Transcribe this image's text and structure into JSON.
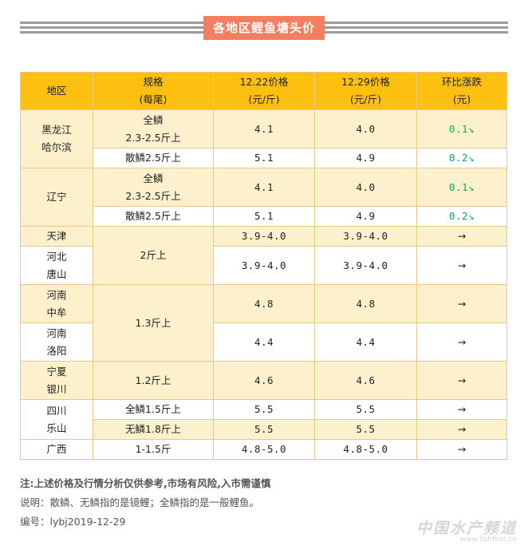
{
  "title": "各地区鲤鱼塘头价",
  "headers": {
    "region": "地区",
    "spec_line1": "规格",
    "spec_line2": "(每尾)",
    "p1222_line1": "12.22价格",
    "p1222_line2": "(元/斤)",
    "p1229_line1": "12.29价格",
    "p1229_line2": "(元/斤)",
    "change_line1": "环比涨跌",
    "change_line2": "(元)"
  },
  "rows": {
    "hlj": {
      "region1": "黑龙江",
      "region2": "哈尔滨",
      "a": {
        "spec1": "全鳞",
        "spec2": "2.3-2.5斤上",
        "p1": "4.1",
        "p2": "4.0",
        "chg": "0.1↘"
      },
      "b": {
        "spec": "散鳞2.5斤上",
        "p1": "5.1",
        "p2": "4.9",
        "chg": "0.2↘"
      }
    },
    "ln": {
      "region": "辽宁",
      "a": {
        "spec1": "全鳞",
        "spec2": "2.3-2.5斤上",
        "p1": "4.1",
        "p2": "4.0",
        "chg": "0.1↘"
      },
      "b": {
        "spec": "散鳞2.5斤上",
        "p1": "5.1",
        "p2": "4.9",
        "chg": "0.2↘"
      }
    },
    "tj": {
      "region": "天津",
      "spec": "2斤上",
      "p1": "3.9-4.0",
      "p2": "3.9-4.0",
      "chg": "→"
    },
    "hb": {
      "region1": "河北",
      "region2": "唐山",
      "p1": "3.9-4.0",
      "p2": "3.9-4.0",
      "chg": "→"
    },
    "hnzm": {
      "region1": "河南",
      "region2": "中牟",
      "spec": "1.3斤上",
      "p1": "4.8",
      "p2": "4.8",
      "chg": "→"
    },
    "hnly": {
      "region1": "河南",
      "region2": "洛阳",
      "p1": "4.4",
      "p2": "4.4",
      "chg": "→"
    },
    "nx": {
      "region1": "宁夏",
      "region2": "银川",
      "spec": "1.2斤上",
      "p1": "4.6",
      "p2": "4.6",
      "chg": "→"
    },
    "sc": {
      "region1": "四川",
      "region2": "乐山",
      "a": {
        "spec": "全鳞1.5斤上",
        "p1": "5.5",
        "p2": "5.5",
        "chg": "→"
      },
      "b": {
        "spec": "无鳞1.8斤上",
        "p1": "5.5",
        "p2": "5.5",
        "chg": "→"
      }
    },
    "gx": {
      "region": "广西",
      "spec": "1-1.5斤",
      "p1": "4.8-5.0",
      "p2": "4.8-5.0",
      "chg": "→"
    }
  },
  "notes": {
    "note1": "注:上述价格及行情分析仅供参考,市场有风险,入市需谨慎",
    "note2": "说明：散鳞、无鳞指的是镜鲤；全鳞指的是一般鲤鱼。",
    "note3": "编号：lybj2019-12-29"
  },
  "watermark": {
    "text": "中国水产频道",
    "sub": "www.fishfirst.cn"
  },
  "colors": {
    "header": "#fdc010",
    "row_highlight": "#fdf0cc",
    "title_badge": "#f47e5d",
    "down": "#1aa55a"
  }
}
